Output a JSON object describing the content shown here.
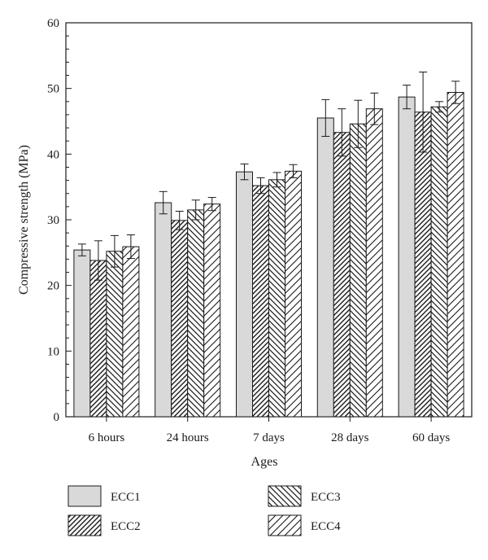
{
  "chart_data": {
    "type": "bar",
    "xlabel": "Ages",
    "ylabel": "Compressive strength (MPa)",
    "ylim": [
      0,
      60
    ],
    "yticks": [
      0,
      10,
      20,
      30,
      40,
      50,
      60
    ],
    "grid": false,
    "legend_position": "bottom",
    "categories": [
      "6 hours",
      "24 hours",
      "7 days",
      "28 days",
      "60 days"
    ],
    "series": [
      {
        "name": "ECC1",
        "pattern": "solid",
        "values": [
          25.4,
          32.6,
          37.3,
          45.5,
          48.7
        ],
        "errors": [
          0.9,
          1.7,
          1.2,
          2.8,
          1.8
        ]
      },
      {
        "name": "ECC2",
        "pattern": "hatch-right",
        "values": [
          23.8,
          29.9,
          35.2,
          43.3,
          46.4
        ],
        "errors": [
          3.0,
          1.4,
          1.2,
          3.6,
          6.1
        ]
      },
      {
        "name": "ECC3",
        "pattern": "hatch-left",
        "values": [
          25.2,
          31.5,
          36.1,
          44.6,
          47.2
        ],
        "errors": [
          2.4,
          1.5,
          1.1,
          3.6,
          0.8
        ]
      },
      {
        "name": "ECC4",
        "pattern": "hatch-right-wide",
        "values": [
          25.9,
          32.4,
          37.4,
          46.9,
          49.4
        ],
        "errors": [
          1.8,
          1.0,
          1.0,
          2.4,
          1.7
        ]
      }
    ],
    "colors": {
      "fill": "#d9d9d9",
      "stroke": "#1a1a1a",
      "background": "#ffffff"
    }
  }
}
